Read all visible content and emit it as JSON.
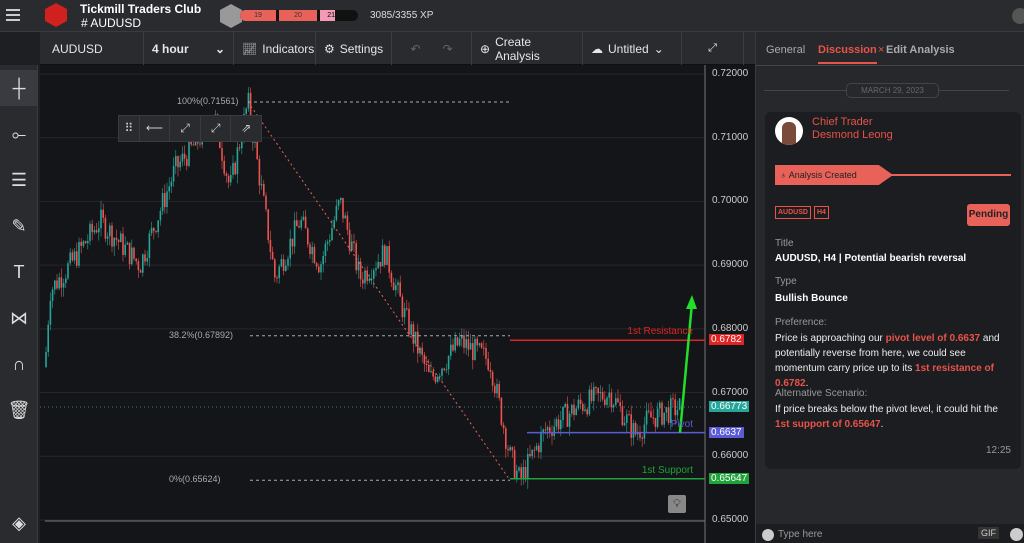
{
  "header": {
    "app_title": "Tickmill Traders Club",
    "channel": "# AUDUSD",
    "levels": [
      "19",
      "20",
      "21"
    ],
    "xp": "3085/3355 XP",
    "xp_progress": 0.92
  },
  "toolbar": {
    "symbol": "AUDUSD",
    "interval": "4 hour",
    "indicators": "Indicators",
    "settings": "Settings",
    "create_analysis": "Create Analysis",
    "layout_name": "Untitled"
  },
  "left_tools": [
    "crosshair-icon",
    "trend-line-icon",
    "fib-lines-icon",
    "brush-icon",
    "text-icon",
    "pattern-icon",
    "magnet-icon",
    "trash-icon",
    "layers-icon"
  ],
  "chart": {
    "price_axis": [
      "0.72000",
      "0.71000",
      "0.70000",
      "0.69000",
      "0.68000",
      "0.67000",
      "0.66000",
      "0.65000"
    ],
    "fib_levels": [
      "100%(0.71561)",
      "38.2%(0.67892)",
      "0%(0.65624)"
    ],
    "resistance": {
      "label": "1st Resistance",
      "price": "0.6782",
      "color": "#e02424"
    },
    "pivot": {
      "label": "Pivot",
      "price": "0.6637",
      "color": "#5b5bd6"
    },
    "support": {
      "label": "1st Support",
      "price": "0.65647",
      "color": "#1fa33a"
    },
    "last_price": "0.66773",
    "up_color": "#26a69a",
    "down_color": "#ef5350"
  },
  "panel": {
    "tabs": [
      "General",
      "Discussion",
      "Edit Analysis"
    ],
    "date": "MARCH 29, 2023",
    "author_role": "Chief Trader",
    "author_name": "Desmond Leong",
    "event": "Analysis Created",
    "tags": [
      "AUDUSD",
      "H4"
    ],
    "status": "Pending",
    "title_label": "Title",
    "title": "AUDUSD, H4 | Potential bearish reversal",
    "type_label": "Type",
    "type": "Bullish Bounce",
    "pref_label": "Preference:",
    "pref": [
      "Price is approaching our ",
      "pivot level of 0.6637",
      " and potentially reverse from here, we could see momentum carry price up to its ",
      "1st resistance of 0.6782",
      "."
    ],
    "alt_label": "Alternative Scenario:",
    "alt": [
      "If price breaks below the pivot level, it could hit the ",
      "1st support of 0.65647",
      "."
    ],
    "time": "12:25",
    "input_placeholder": "Type here",
    "gif": "GIF"
  }
}
